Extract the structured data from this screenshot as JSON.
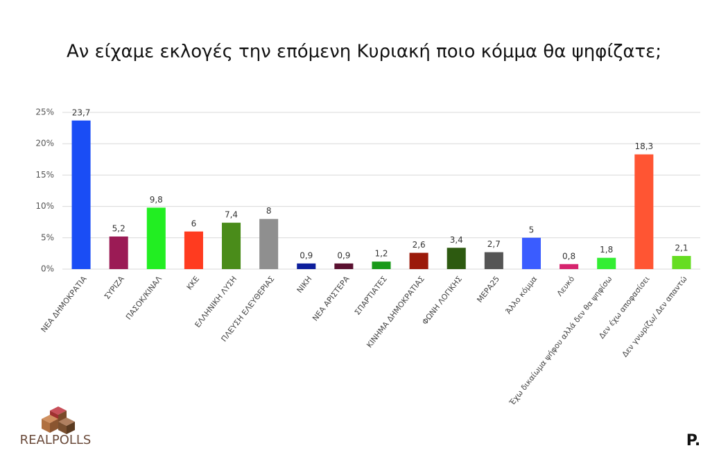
{
  "chart_data": {
    "type": "bar",
    "title": "Αν είχαμε εκλογές την επόμενη Κυριακή ποιο κόμμα θα ψηφίζατε;",
    "categories": [
      "ΝΕΑ ΔΗΜΟΚΡΑΤΙΑ",
      "ΣΥΡΙΖΑ",
      "ΠΑΣΟΚ/ΚΙΝΑΛ",
      "ΚΚΕ",
      "ΕΛΛΗΝΙΚΗ ΛΥΣΗ",
      "ΠΛΕΥΣΗ ΕΛΕΥΘΕΡΙΑΣ",
      "ΝΙΚΗ",
      "ΝΕΑ ΑΡΙΣΤΕΡΑ",
      "ΣΠΑΡΤΙΑΤΕΣ",
      "ΚΙΝΗΜΑ ΔΗΜΟΚΡΑΤΙΑΣ",
      "ΦΩΝΗ ΛΟΓΙΚΗΣ",
      "ΜΕΡΑ25",
      "Άλλο κόμμα",
      "Λευκό",
      "Έχω δικαίωμα ψήφου αλλά δεν θα ψηφίσω",
      "Δεν έχω αποφασίσει",
      "Δεν γνωρίζω/ Δεν απαντώ"
    ],
    "values": [
      23.7,
      5.2,
      9.8,
      6,
      7.4,
      8,
      0.9,
      0.9,
      1.2,
      2.6,
      3.4,
      2.7,
      5,
      0.8,
      1.8,
      18.3,
      2.1
    ],
    "value_labels": [
      "23,7",
      "5,2",
      "9,8",
      "6",
      "7,4",
      "8",
      "0,9",
      "0,9",
      "1,2",
      "2,6",
      "3,4",
      "2,7",
      "5",
      "0,8",
      "1,8",
      "18,3",
      "2,1"
    ],
    "colors": [
      "#1a4df5",
      "#9b1b55",
      "#22ee22",
      "#ff3b1f",
      "#4a8c1a",
      "#8f8f8f",
      "#0d1f9c",
      "#5a1030",
      "#1a9a1a",
      "#9b1a0a",
      "#2d5a10",
      "#555555",
      "#3a5cff",
      "#d6246e",
      "#33ee33",
      "#ff5533",
      "#66dd22"
    ],
    "ylim": [
      0,
      25
    ],
    "yticks": [
      {
        "value": 0,
        "label": "0%"
      },
      {
        "value": 5,
        "label": "5%"
      },
      {
        "value": 10,
        "label": "10%"
      },
      {
        "value": 15,
        "label": "15%"
      },
      {
        "value": 20,
        "label": "20%"
      },
      {
        "value": 25,
        "label": "25%"
      }
    ],
    "grid": true
  },
  "logos": {
    "left": "REALPOLLS",
    "right": "P."
  }
}
